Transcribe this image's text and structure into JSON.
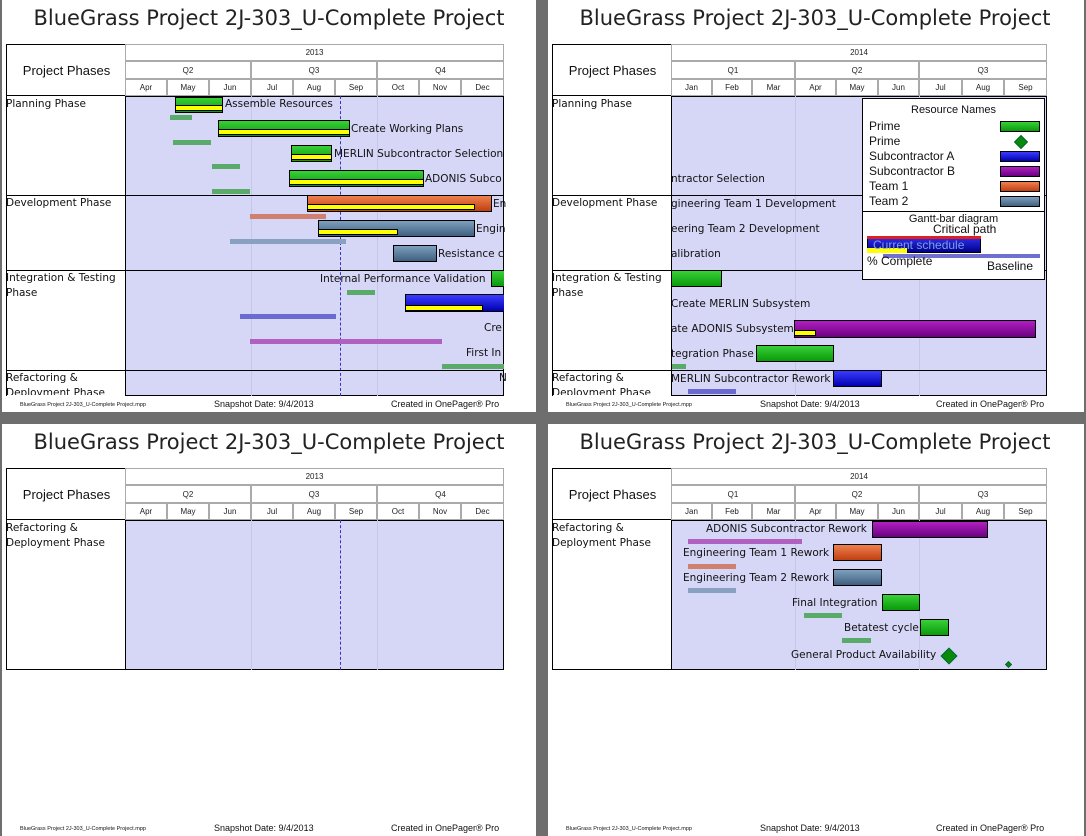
{
  "title": "BlueGrass Project 2J-303_U-Complete Project",
  "header_label": "Project Phases",
  "footer": {
    "file": "BlueGrass Project 2J-303_U-Complete Project.mpp",
    "snapshot": "Snapshot Date: 9/4/2013",
    "created": "Created in OnePager® Pro"
  },
  "timescale_2013": {
    "year": "2013",
    "quarters": [
      "Q2",
      "Q3",
      "Q4"
    ],
    "months": [
      "Apr",
      "May",
      "Jun",
      "Jul",
      "Aug",
      "Sep",
      "Oct",
      "Nov",
      "Dec"
    ]
  },
  "timescale_2014": {
    "year": "2014",
    "quarters": [
      "Q1",
      "Q2",
      "Q3"
    ],
    "months": [
      "Jan",
      "Feb",
      "Mar",
      "Apr",
      "May",
      "Jun",
      "Jul",
      "Aug",
      "Sep"
    ]
  },
  "phases": {
    "planning": "Planning Phase",
    "development": "Development Phase",
    "integration": "Integration & Testing Phase",
    "refactoring": "Refactoring & Deployment Phase"
  },
  "tasks_p1": {
    "assemble": "Assemble Resources",
    "plans": "Create Working Plans",
    "merlin_sel": "MERLIN Subcontractor Selection",
    "adonis_sel": "ADONIS Subco",
    "eng1": "En",
    "eng2": "Engin",
    "resist": "Resistance c",
    "ipv": "Internal Performance Validation",
    "cre": "Cre",
    "firstin": "First In",
    "n": "N"
  },
  "tasks_p2": {
    "sel": "ntractor Selection",
    "eng1": "gineering Team 1 Development",
    "eng2": "eering Team 2 Development",
    "calib": "alibration",
    "create_merlin": "Create MERLIN Subsystem",
    "ate_adonis": "ate ADONIS Subsystem",
    "integ": "tegration Phase",
    "merlin_rework": "MERLIN Subcontractor Rework"
  },
  "tasks_p4": {
    "adonis_rework": "ADONIS Subcontractor Rework",
    "eng1_rework": "Engineering Team 1 Rework",
    "eng2_rework": "Engineering Team 2 Rework",
    "final": "Final Integration",
    "beta": "Betatest cycle",
    "ga": "General Product Availability"
  },
  "legend": {
    "resource_title": "Resource Names",
    "resources": [
      "Prime",
      "Prime",
      "Subcontractor A",
      "Subcontractor B",
      "Team 1",
      "Team 2"
    ],
    "gantt_title": "Gantt-bar diagram",
    "critical": "Critical path",
    "current": "Current schedule",
    "pct": "% Complete",
    "baseline": "Baseline"
  },
  "colors": {
    "chart_bg": "#d6d6f7",
    "prime": "#0a9a0a",
    "sub_a": "#0000b0",
    "sub_b": "#6a0080",
    "team1": "#c04010",
    "team2": "#3f607f",
    "pct_complete": "#ffff00"
  }
}
